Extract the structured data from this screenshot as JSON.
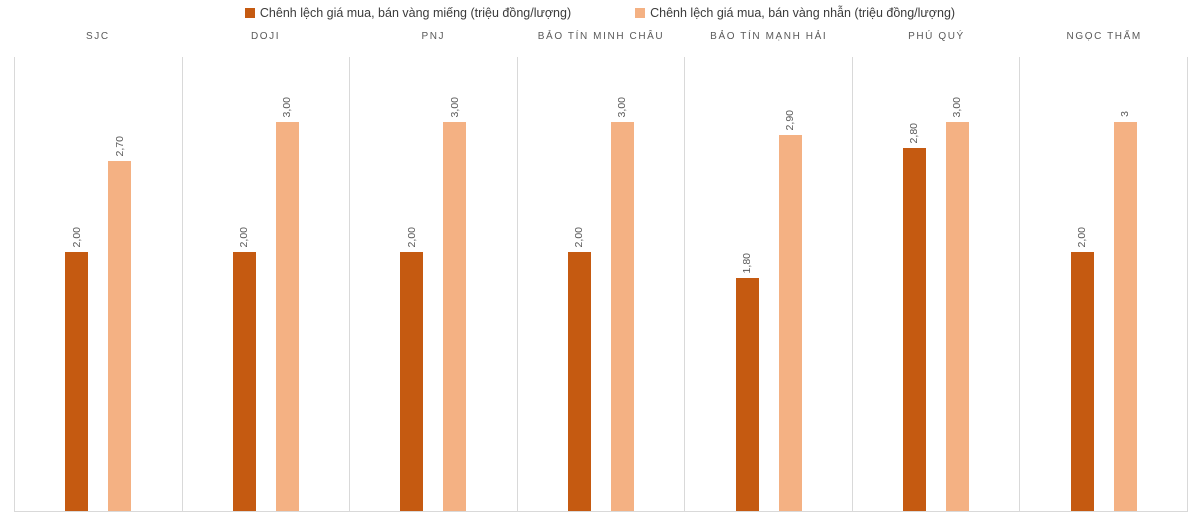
{
  "colors": {
    "series_mieng": "#c55a11",
    "series_nhan": "#f4b183",
    "gridline": "#d9d9d9",
    "label_text": "#595959",
    "legend_text": "#3b3b3b"
  },
  "legend": {
    "items": [
      {
        "label": "Chênh lệch giá mua, bán vàng miếng (triệu đồng/lượng)",
        "color": "#c55a11"
      },
      {
        "label": "Chênh lệch giá mua, bán vàng nhẫn (triệu đồng/lượng)",
        "color": "#f4b183"
      }
    ]
  },
  "chart_data": {
    "type": "bar",
    "title": "",
    "xlabel": "",
    "ylabel": "",
    "categories": [
      "SJC",
      "DOJI",
      "PNJ",
      "BẢO TÍN MINH CHÂU",
      "BẢO TÍN MẠNH HẢI",
      "PHÚ QUÝ",
      "NGỌC THẨM"
    ],
    "series": [
      {
        "name": "Chênh lệch giá mua, bán vàng miếng (triệu đồng/lượng)",
        "color": "#c55a11",
        "values": [
          2.0,
          2.0,
          2.0,
          2.0,
          1.8,
          2.8,
          2.0
        ],
        "data_labels": [
          "2,00",
          "2,00",
          "2,00",
          "2,00",
          "1,80",
          "2,80",
          "2,00"
        ]
      },
      {
        "name": "Chênh lệch giá mua, bán vàng nhẫn (triệu đồng/lượng)",
        "color": "#f4b183",
        "values": [
          2.7,
          3.0,
          3.0,
          3.0,
          2.9,
          3.0,
          3.0
        ],
        "data_labels": [
          "2,70",
          "3,00",
          "3,00",
          "3,00",
          "2,90",
          "3,00",
          "3"
        ]
      }
    ],
    "ylim": [
      0,
      3.5
    ],
    "legend_position": "top",
    "grid": "vertical category separators, bottom axis line, no y-axis ticks"
  }
}
